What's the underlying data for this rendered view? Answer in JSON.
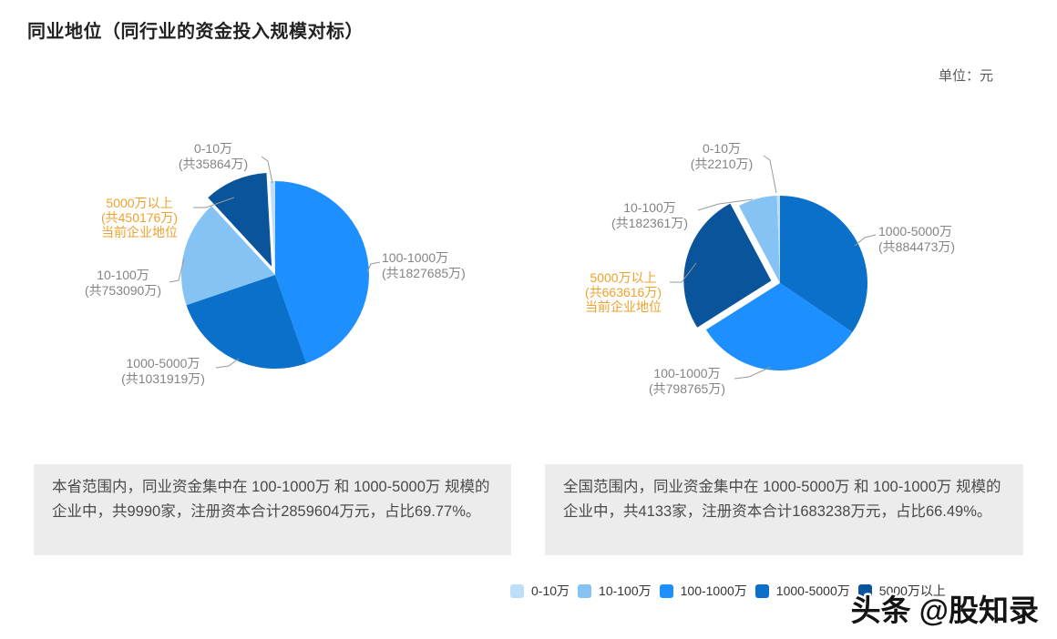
{
  "header": {
    "title": "同业地位（同行业的资金投入规模对标）",
    "unit": "单位：元"
  },
  "legend": {
    "items": [
      {
        "label": "0-10万",
        "color": "#bcdef8"
      },
      {
        "label": "10-100万",
        "color": "#84c3f3"
      },
      {
        "label": "100-1000万",
        "color": "#1e8fff"
      },
      {
        "label": "1000-5000万",
        "color": "#0b70c9"
      },
      {
        "label": "5000万以上",
        "color": "#0a549b"
      }
    ]
  },
  "charts": [
    {
      "scope": "本省",
      "summary": "本省范围内，同业资金集中在 100-1000万 和 1000-5000万 规模的企业中，共9990家，注册资本合计2859604万元，占比69.77%。",
      "labels": [
        {
          "name": "0-10万",
          "total": "(共35864万)"
        },
        {
          "name": "5000万以上",
          "total": "(共450176万)",
          "note": "当前企业地位"
        },
        {
          "name": "10-100万",
          "total": "(共753090万)"
        },
        {
          "name": "1000-5000万",
          "total": "(共1031919万)"
        },
        {
          "name": "100-1000万",
          "total": "(共1827685万)"
        }
      ]
    },
    {
      "scope": "全国",
      "summary": "全国范围内，同业资金集中在 1000-5000万 和 100-1000万 规模的企业中，共4133家，注册资本合计1683238万元，占比66.49%。",
      "labels": [
        {
          "name": "0-10万",
          "total": "(共2210万)"
        },
        {
          "name": "10-100万",
          "total": "(共182361万)"
        },
        {
          "name": "5000万以上",
          "total": "(共663616万)",
          "note": "当前企业地位"
        },
        {
          "name": "1000-5000万",
          "total": "(共884473万)"
        },
        {
          "name": "100-1000万",
          "total": "(共798765万)"
        }
      ]
    }
  ],
  "chart_data": [
    {
      "type": "pie",
      "scope": "本省",
      "categories": [
        "0-10万",
        "10-100万",
        "100-1000万",
        "1000-5000万",
        "5000万以上"
      ],
      "values": [
        35864,
        753090,
        1827685,
        1031919,
        450176
      ],
      "value_unit": "万",
      "total": 4098734,
      "highlighted_category": "5000万以上",
      "highlight_note": "当前企业地位",
      "sorted_descending_clockwise_from_top": true,
      "legend_position": "bottom"
    },
    {
      "type": "pie",
      "scope": "全国",
      "categories": [
        "0-10万",
        "10-100万",
        "100-1000万",
        "1000-5000万",
        "5000万以上"
      ],
      "values": [
        2210,
        182361,
        798765,
        884473,
        663616
      ],
      "value_unit": "万",
      "total": 2531425,
      "highlighted_category": "5000万以上",
      "highlight_note": "当前企业地位",
      "sorted_descending_clockwise_from_top": true,
      "legend_position": "bottom"
    }
  ],
  "watermark": "头条 @股知录"
}
